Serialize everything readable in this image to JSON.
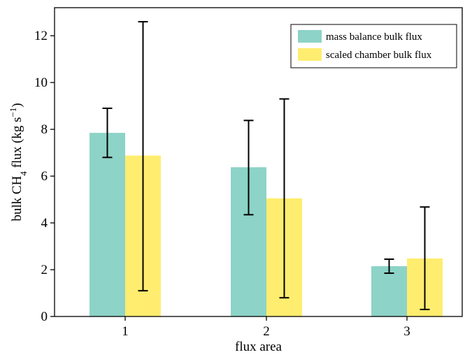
{
  "chart_data": {
    "type": "bar",
    "title": "",
    "xlabel": "flux area",
    "ylabel": {
      "prefix": "bulk CH",
      "subscript": "4",
      "middle": " flux (kg s",
      "superscript": "−1",
      "suffix": ")"
    },
    "categories": [
      "1",
      "2",
      "3"
    ],
    "ylim": [
      0,
      13.2
    ],
    "yticks": [
      0,
      2,
      4,
      6,
      8,
      10,
      12
    ],
    "grid": false,
    "legend_position": "top-right",
    "series": [
      {
        "name": "mass balance bulk flux",
        "color": "#8dd3c7",
        "values": [
          7.85,
          6.38,
          2.15
        ],
        "err_low": [
          6.8,
          4.35,
          1.85
        ],
        "err_high": [
          8.9,
          8.38,
          2.45
        ]
      },
      {
        "name": "scaled chamber bulk flux",
        "color": "#ffed6f",
        "values": [
          6.88,
          5.05,
          2.48
        ],
        "err_low": [
          1.1,
          0.8,
          0.3
        ],
        "err_high": [
          12.6,
          9.3,
          4.68
        ]
      }
    ]
  }
}
